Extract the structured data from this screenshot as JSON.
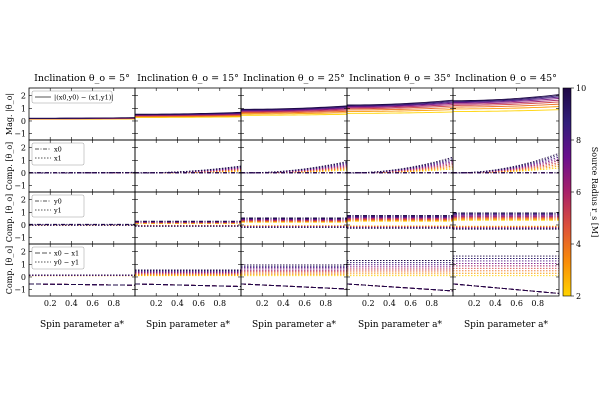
{
  "chart_data": {
    "type": "line",
    "columns": [
      {
        "title": "Inclination θ_o = 5°",
        "inclination_deg": 5
      },
      {
        "title": "Inclination θ_o = 15°",
        "inclination_deg": 15
      },
      {
        "title": "Inclination θ_o = 25°",
        "inclination_deg": 25
      },
      {
        "title": "Inclination θ_o = 35°",
        "inclination_deg": 35
      },
      {
        "title": "Inclination θ_o = 45°",
        "inclination_deg": 45
      }
    ],
    "rows": [
      {
        "ylabel": "Mag. |θ_o|",
        "legend": [
          "|(x0,y0) − (x1,y1)|"
        ]
      },
      {
        "ylabel": "Comp. [θ_o]",
        "legend": [
          "x0",
          "x1"
        ]
      },
      {
        "ylabel": "Comp. [θ_o]",
        "legend": [
          "y0",
          "y1"
        ]
      },
      {
        "ylabel": "Comp. [θ_o]",
        "legend": [
          "x0 − x1",
          "y0 − y1"
        ]
      }
    ],
    "xlabel": "Spin parameter a*",
    "xlim": [
      0,
      1
    ],
    "xticks": [
      0.2,
      0.4,
      0.6,
      0.8
    ],
    "ylim": [
      -1.5,
      2.6
    ],
    "yticks": [
      -1,
      0,
      1,
      2
    ],
    "colorbar": {
      "label": "Source Radius r_s [M]",
      "min": 2,
      "max": 10,
      "ticks": [
        2,
        4,
        6,
        8,
        10
      ],
      "colormap": [
        "#ffd300",
        "#f98c0a",
        "#dd513a",
        "#a82169",
        "#6a0f8e",
        "#311e7a",
        "#1e0845"
      ]
    },
    "source_radii": [
      2,
      3,
      4,
      5,
      6,
      7,
      8,
      9,
      10
    ],
    "magnitude_start": {
      "5": [
        0.14,
        0.16,
        0.17,
        0.18,
        0.19,
        0.2,
        0.2,
        0.21,
        0.21
      ],
      "15": [
        0.28,
        0.33,
        0.37,
        0.41,
        0.44,
        0.47,
        0.49,
        0.51,
        0.53
      ],
      "25": [
        0.45,
        0.55,
        0.63,
        0.7,
        0.76,
        0.81,
        0.85,
        0.89,
        0.92
      ],
      "35": [
        0.6,
        0.75,
        0.87,
        0.97,
        1.05,
        1.12,
        1.17,
        1.22,
        1.26
      ],
      "45": [
        0.75,
        0.95,
        1.1,
        1.23,
        1.33,
        1.42,
        1.49,
        1.55,
        1.6
      ]
    },
    "magnitude_spin_slope": {
      "5": 0.05,
      "15": 0.15,
      "25": 0.27,
      "35": 0.38,
      "45": 0.48
    },
    "x1_at_spin_1": {
      "5": 0.05,
      "15": 0.55,
      "25": 0.9,
      "35": 1.25,
      "45": 1.55
    },
    "y_component_level": {
      "5": 0.05,
      "15": 0.3,
      "25": 0.55,
      "35": 0.75,
      "45": 0.95
    },
    "diff_offset_level": {
      "5": 0.05,
      "15": 0.45,
      "25": 0.85,
      "35": 1.2,
      "45": 1.55
    },
    "diff_end_at_spin_1": {
      "5": -0.65,
      "15": -0.75,
      "25": -0.95,
      "35": -1.1,
      "45": -1.3
    }
  }
}
